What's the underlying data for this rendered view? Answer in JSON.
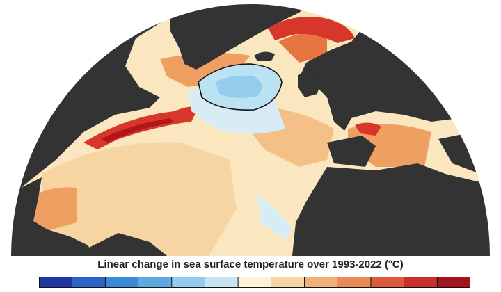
{
  "map": {
    "colors": {
      "land": "#333333",
      "ocean_base": "#fbe7bf",
      "background": "#ffffff",
      "contour": "#111111"
    },
    "region_colors": {
      "light_tan": "#f7d5a3",
      "tan": "#f4c088",
      "orange": "#ef9f62",
      "dark_orange": "#e6763f",
      "red": "#d7362a",
      "dark_red": "#b1161b",
      "pale_blue": "#d7ecf5",
      "light_blue": "#bbe2f2",
      "blue": "#93ccec"
    }
  },
  "colorbar": {
    "title": "Linear change in sea surface temperature over 1993-2022 (°C)",
    "colors": [
      "#1f37a3",
      "#2d62c6",
      "#3a8ad9",
      "#5fa9e3",
      "#93ccec",
      "#c6e5f2",
      "#fdf3d6",
      "#f7d5a3",
      "#f1b27a",
      "#ea8a56",
      "#dd5a3c",
      "#c8302b",
      "#a3141f"
    ]
  }
}
